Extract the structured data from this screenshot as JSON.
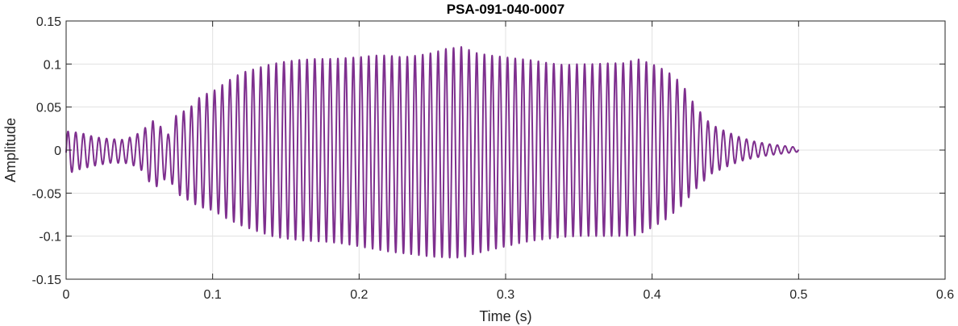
{
  "chart_data": {
    "type": "line",
    "title": "PSA-091-040-0007",
    "xlabel": "Time (s)",
    "ylabel": "Amplitude",
    "xlim": [
      0,
      0.6
    ],
    "ylim": [
      -0.15,
      0.15
    ],
    "grid": true,
    "xticks": [
      0,
      0.1,
      0.2,
      0.3,
      0.4,
      0.5,
      0.6
    ],
    "xtick_labels": [
      "0",
      "0.1",
      "0.2",
      "0.3",
      "0.4",
      "0.5",
      "0.6"
    ],
    "yticks": [
      -0.15,
      -0.1,
      -0.05,
      0,
      0.05,
      0.1,
      0.15
    ],
    "ytick_labels": [
      "-0.15",
      "-0.1",
      "-0.05",
      "0",
      "0.05",
      "0.1",
      "0.15"
    ],
    "line_color": "#7E2F8E",
    "grid_color": "#e1e1e1",
    "series": [
      {
        "x": [
          0,
          0.01,
          0.02,
          0.03,
          0.04,
          0.05,
          0.06,
          0.07,
          0.075,
          0.08,
          0.085,
          0.09,
          0.095,
          0.1,
          0.11,
          0.12,
          0.13,
          0.14,
          0.15,
          0.16,
          0.17,
          0.18,
          0.19,
          0.2,
          0.21,
          0.22,
          0.23,
          0.24,
          0.25,
          0.26,
          0.27,
          0.28,
          0.29,
          0.3,
          0.31,
          0.32,
          0.33,
          0.34,
          0.35,
          0.36,
          0.37,
          0.38,
          0.39,
          0.4,
          0.41,
          0.42,
          0.43,
          0.44,
          0.45,
          0.46,
          0.47,
          0.48,
          0.49,
          0.5
        ],
        "envelope_max": [
          0.022,
          0.02,
          0.015,
          0.013,
          0.012,
          0.02,
          0.035,
          0.018,
          0.04,
          0.045,
          0.05,
          0.06,
          0.065,
          0.068,
          0.08,
          0.09,
          0.095,
          0.1,
          0.103,
          0.105,
          0.106,
          0.106,
          0.107,
          0.108,
          0.11,
          0.11,
          0.108,
          0.11,
          0.113,
          0.118,
          0.12,
          0.113,
          0.11,
          0.108,
          0.106,
          0.104,
          0.101,
          0.099,
          0.1,
          0.1,
          0.101,
          0.101,
          0.106,
          0.1,
          0.092,
          0.078,
          0.05,
          0.03,
          0.022,
          0.015,
          0.01,
          0.007,
          0.005,
          0.003
        ],
        "envelope_min": [
          -0.028,
          -0.022,
          -0.018,
          -0.015,
          -0.015,
          -0.02,
          -0.045,
          -0.03,
          -0.05,
          -0.055,
          -0.06,
          -0.065,
          -0.068,
          -0.07,
          -0.08,
          -0.088,
          -0.094,
          -0.1,
          -0.103,
          -0.105,
          -0.106,
          -0.107,
          -0.109,
          -0.112,
          -0.115,
          -0.118,
          -0.12,
          -0.122,
          -0.124,
          -0.125,
          -0.125,
          -0.12,
          -0.116,
          -0.112,
          -0.108,
          -0.105,
          -0.103,
          -0.101,
          -0.1,
          -0.1,
          -0.1,
          -0.1,
          -0.099,
          -0.09,
          -0.08,
          -0.065,
          -0.045,
          -0.028,
          -0.02,
          -0.013,
          -0.009,
          -0.006,
          -0.004,
          -0.002
        ],
        "frequency_hz": 190
      }
    ]
  }
}
